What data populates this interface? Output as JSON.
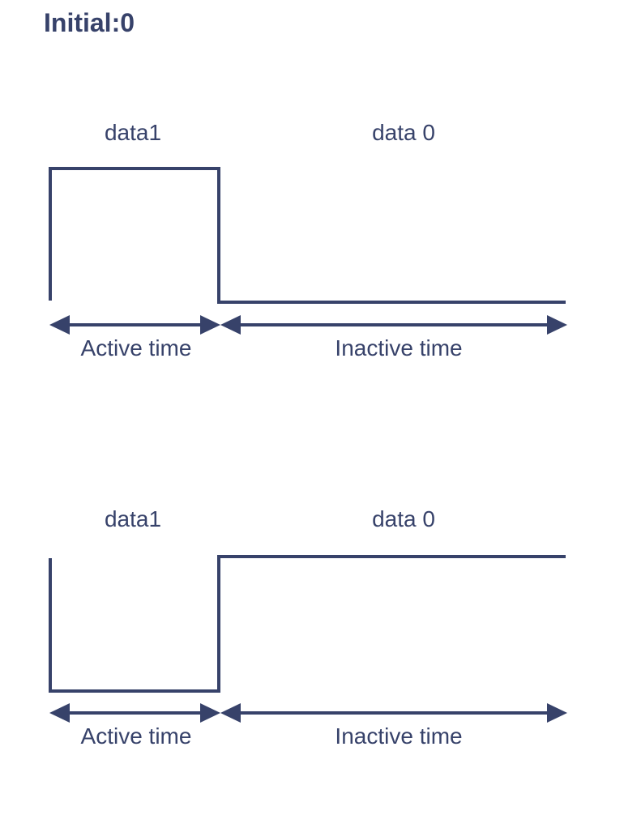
{
  "title": "Initial:0",
  "colors": {
    "stroke": "#37426a",
    "text": "#37426a",
    "background": "#ffffff"
  },
  "diagrams": [
    {
      "name": "active-high",
      "phase1_label": "data1",
      "phase2_label": "data 0",
      "active_label": "Active time",
      "inactive_label": "Inactive time"
    },
    {
      "name": "active-low",
      "phase1_label": "data1",
      "phase2_label": "data 0",
      "active_label": "Active time",
      "inactive_label": "Inactive time"
    }
  ]
}
